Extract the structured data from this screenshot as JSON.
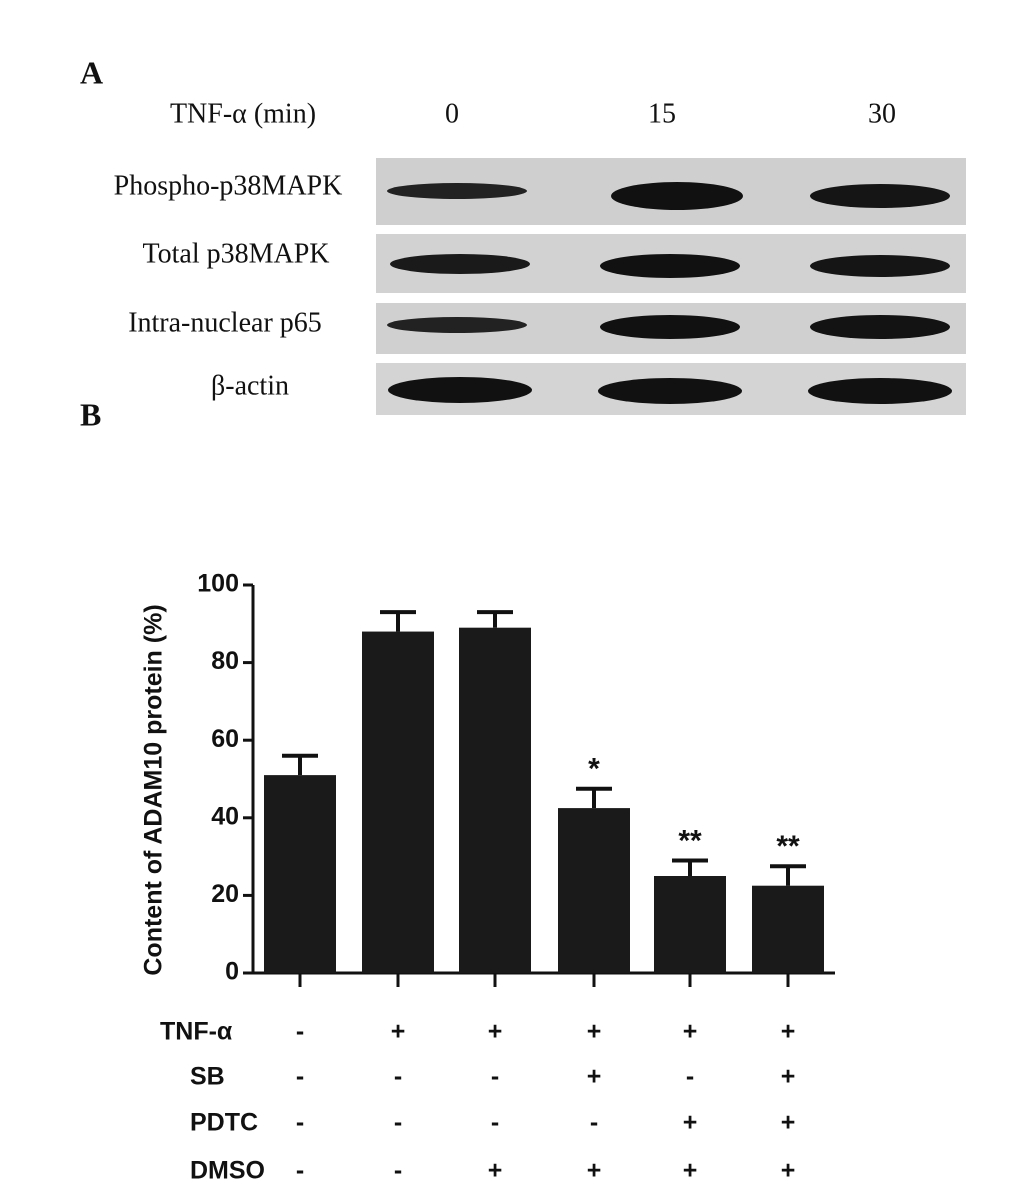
{
  "panel_a": {
    "label": "A",
    "header": "TNF-α (min)",
    "timepoints": [
      "0",
      "15",
      "30"
    ],
    "rows": [
      "Phospho-p38MAPK",
      "Total p38MAPK",
      "Intra-nuclear p65",
      "β-actin"
    ]
  },
  "chart_data": {
    "type": "bar",
    "panel_label": "B",
    "ylabel": "Content of ADAM10 protein (%)",
    "values": [
      51,
      88,
      89,
      42.5,
      25,
      22.5
    ],
    "errors": [
      5,
      5,
      4,
      5,
      4,
      5
    ],
    "annotations": [
      null,
      null,
      null,
      "*",
      "**",
      "**"
    ],
    "color": "#1a1a1a",
    "ylim": [
      0,
      100
    ],
    "yticks": [
      0,
      20,
      40,
      60,
      80,
      100
    ],
    "treatments": [
      {
        "name": "TNF-α",
        "signs": [
          "-",
          "+",
          "+",
          "+",
          "+",
          "+"
        ]
      },
      {
        "name": "SB",
        "signs": [
          "-",
          "-",
          "-",
          "+",
          "-",
          "+"
        ]
      },
      {
        "name": "PDTC",
        "signs": [
          "-",
          "-",
          "-",
          "-",
          "+",
          "+"
        ]
      },
      {
        "name": "DMSO",
        "signs": [
          "-",
          "-",
          "+",
          "+",
          "+",
          "+"
        ]
      }
    ]
  }
}
